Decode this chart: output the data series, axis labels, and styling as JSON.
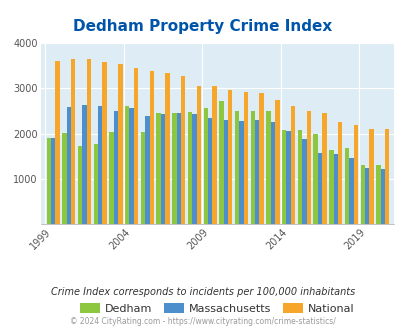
{
  "title": "Dedham Property Crime Index",
  "title_color": "#0055aa",
  "subtitle": "Crime Index corresponds to incidents per 100,000 inhabitants",
  "footer": "© 2024 CityRating.com - https://www.cityrating.com/crime-statistics/",
  "years": [
    1999,
    2000,
    2001,
    2002,
    2003,
    2004,
    2005,
    2006,
    2007,
    2008,
    2009,
    2010,
    2011,
    2012,
    2013,
    2014,
    2015,
    2016,
    2017,
    2018,
    2019,
    2020
  ],
  "dedham": [
    1900,
    2020,
    1720,
    1770,
    2030,
    2600,
    2040,
    2450,
    2460,
    2470,
    2570,
    2710,
    2500,
    2490,
    2490,
    2070,
    2070,
    2000,
    1650,
    1680,
    1320,
    1300
  ],
  "massachusetts": [
    1900,
    2580,
    2630,
    2600,
    2500,
    2570,
    2390,
    2430,
    2450,
    2430,
    2340,
    2290,
    2280,
    2290,
    2250,
    2060,
    1890,
    1580,
    1560,
    1460,
    1250,
    1230
  ],
  "national": [
    3610,
    3650,
    3640,
    3570,
    3530,
    3450,
    3380,
    3330,
    3270,
    3050,
    3040,
    2960,
    2920,
    2890,
    2740,
    2620,
    2490,
    2450,
    2250,
    2200,
    2100,
    2100
  ],
  "dedham_color": "#8dc63f",
  "mass_color": "#4d8fcc",
  "national_color": "#f6a72b",
  "bg_color": "#deedf5",
  "ylim": [
    0,
    4000
  ],
  "yticks": [
    0,
    1000,
    2000,
    3000,
    4000
  ],
  "xtick_years": [
    1999,
    2004,
    2009,
    2014,
    2019
  ],
  "bar_width": 0.28,
  "legend_labels": [
    "Dedham",
    "Massachusetts",
    "National"
  ],
  "subtitle_color": "#333333",
  "footer_color": "#999999",
  "footer_link_color": "#4d8fcc"
}
